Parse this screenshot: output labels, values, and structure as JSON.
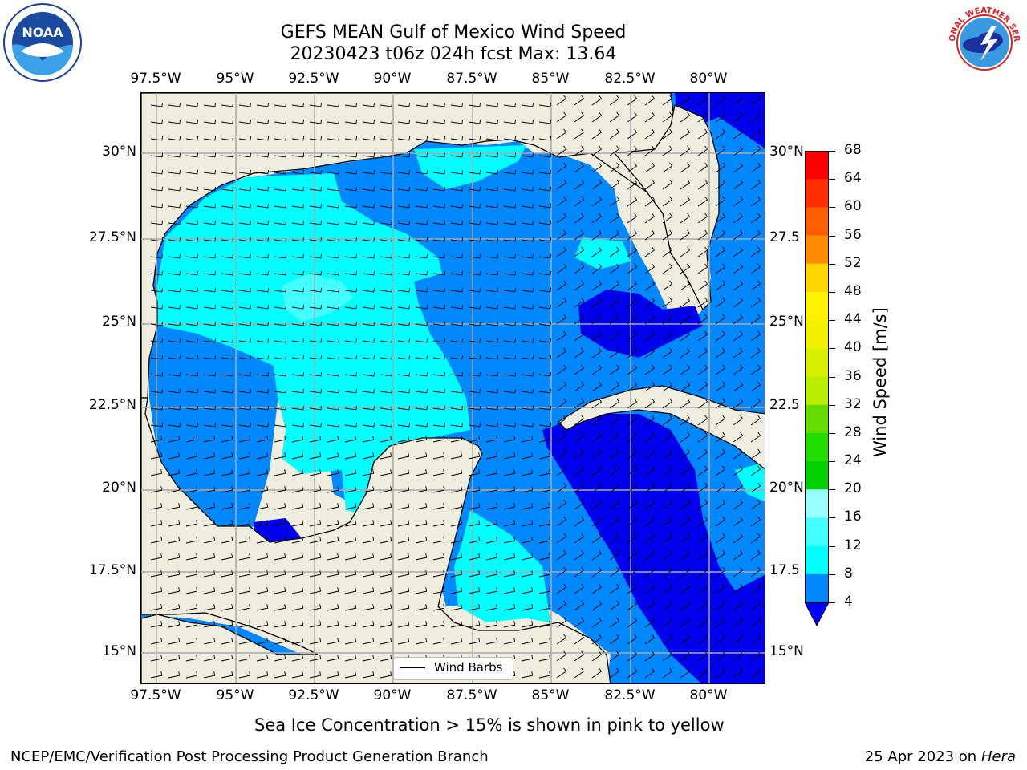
{
  "header": {
    "title_line1": "GEFS MEAN Gulf of Mexico Wind Speed",
    "title_line2": "20230423 t06z 024h fcst   Max: 13.64"
  },
  "logos": {
    "left": "NOAA",
    "left_ring": "NATIONAL OCEANIC AND ATMOSPHERIC ADMINISTRATION · U.S. DEPARTMENT OF COMMERCE",
    "right_ring": "NATIONAL WEATHER SERVICE"
  },
  "map": {
    "lon_labels": [
      "97.5°W",
      "95°W",
      "92.5°W",
      "90°W",
      "87.5°W",
      "85°W",
      "82.5°W",
      "80°W"
    ],
    "lat_labels_left": [
      "30°N",
      "27.5°N",
      "25°N",
      "22.5°N",
      "20°N",
      "17.5°N",
      "15°N"
    ],
    "lat_labels_right": [
      "30°N",
      "27.5",
      "25°N",
      "22.5",
      "20°N",
      "17.5",
      "15°N"
    ],
    "legend_label": "Wind Barbs"
  },
  "colorbar": {
    "label": "Wind Speed [m/s]",
    "ticks": [
      "68",
      "64",
      "60",
      "56",
      "52",
      "48",
      "44",
      "40",
      "36",
      "32",
      "28",
      "24",
      "20",
      "16",
      "12",
      "8",
      "4"
    ],
    "colors": [
      "#ff0000",
      "#ff2f00",
      "#ff5e00",
      "#ff8c00",
      "#ffb200",
      "#ffd700",
      "#fff200",
      "#f2f200",
      "#d8f000",
      "#b9ee00",
      "#66dd00",
      "#22dd00",
      "#00d000",
      "#44ff88",
      "#99ffff",
      "#44ffff",
      "#00ffff",
      "#0088ff"
    ],
    "extend_color": "#0000ff"
  },
  "caption": "Sea Ice Concentration > 15% is shown in pink to yellow",
  "footer": {
    "left": "NCEP/EMC/Verification Post Processing Product Generation Branch",
    "right_prefix": "25 Apr 2023 on ",
    "right_italic": "Hera"
  }
}
